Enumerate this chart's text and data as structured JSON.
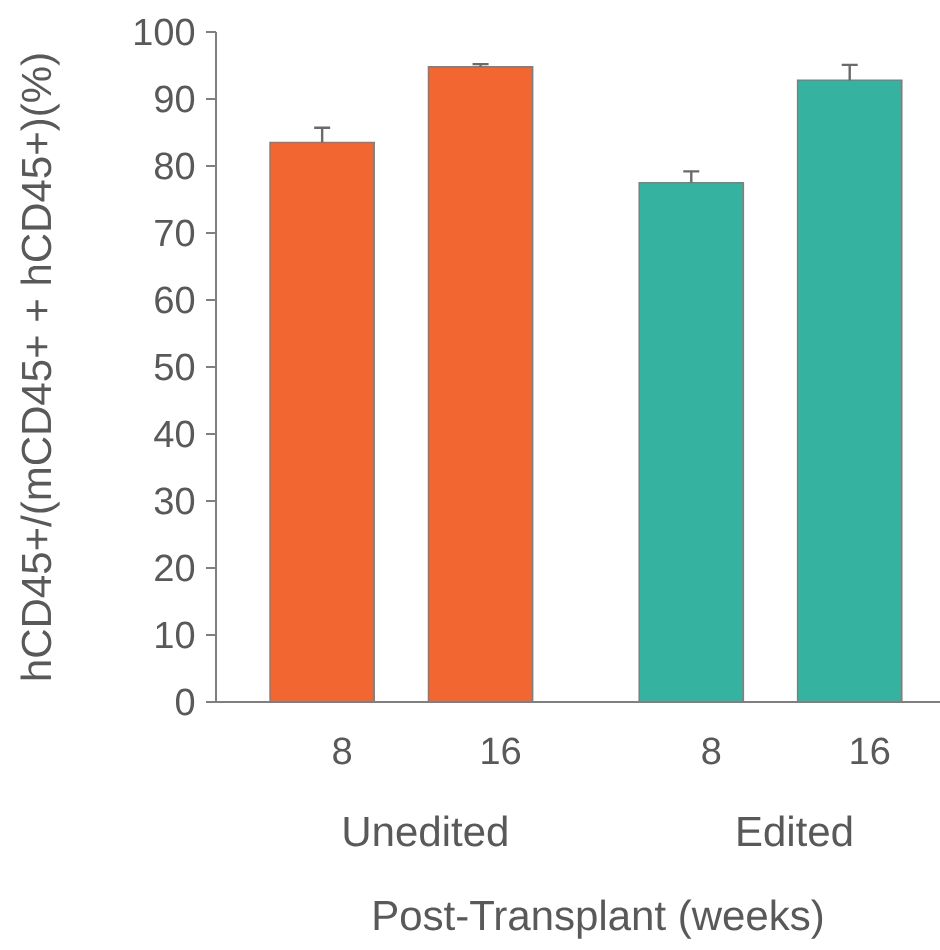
{
  "chart_data": {
    "type": "bar",
    "xlabel": "Post-Transplant (weeks)",
    "ylabel": "hCD45+/(mCD45+ + hCD45+)(%)",
    "categories": [
      "8",
      "16",
      "8",
      "16"
    ],
    "series": [
      {
        "name": "Unedited",
        "color": "#f26632",
        "values": [
          83.5,
          94.8,
          null,
          null
        ],
        "errors": [
          [
            83.5,
            85.7
          ],
          [
            94.8,
            95.2
          ],
          null,
          null
        ]
      },
      {
        "name": "Edited",
        "color": "#35b3a0",
        "values": [
          null,
          null,
          77.5,
          92.8
        ],
        "errors": [
          null,
          null,
          [
            77.5,
            79.2
          ],
          [
            92.8,
            95.1
          ]
        ]
      }
    ],
    "ylim": [
      0,
      100
    ],
    "yticks": [
      0,
      10,
      20,
      30,
      40,
      50,
      60,
      70,
      80,
      90,
      100
    ]
  }
}
